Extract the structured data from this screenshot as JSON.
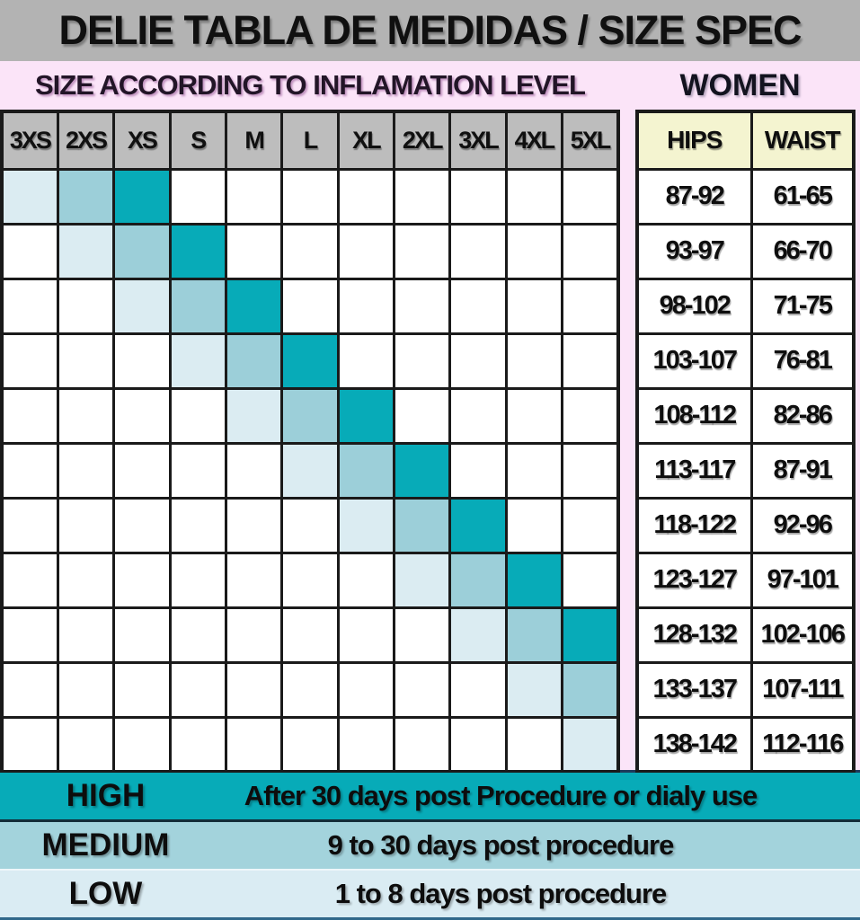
{
  "title": "DELIE TABLA DE MEDIDAS / SIZE SPEC",
  "section_headers": {
    "left": "SIZE ACCORDING TO INFLAMATION LEVEL",
    "right": "WOMEN"
  },
  "legend": {
    "rows": [
      {
        "label": "HIGH",
        "description": "After 30 days post Procedure or dialy use",
        "level": "high"
      },
      {
        "label": "MEDIUM",
        "description": "9 to 30 days post procedure",
        "level": "medium"
      },
      {
        "label": "LOW",
        "description": "1 to 8 days post procedure",
        "level": "low"
      }
    ]
  },
  "colors": {
    "high": "#07abb8",
    "medium": "#9ccfd9",
    "low": "#dbecf2",
    "legend_medium": "#a3d3dc",
    "legend_low": "#daecf3",
    "title_bar_bg": "#b3b3b3",
    "grid_header_bg": "#bdbdbd",
    "page_bg": "#fbe4f8",
    "women_header_bg": "#f4f4d0",
    "border": "#1a1a1a",
    "navy_line": "#1d3a5c"
  },
  "chart_data": [
    {
      "type": "heatmap",
      "title": "SIZE ACCORDING TO INFLAMATION LEVEL",
      "x_categories": [
        "3XS",
        "2XS",
        "XS",
        "S",
        "M",
        "L",
        "XL",
        "2XL",
        "3XL",
        "4XL",
        "5XL"
      ],
      "levels": [
        "LOW",
        "MEDIUM",
        "HIGH"
      ],
      "cells": [
        {
          "row": 1,
          "low": "3XS",
          "medium": "2XS",
          "high": "XS"
        },
        {
          "row": 2,
          "low": "2XS",
          "medium": "XS",
          "high": "S"
        },
        {
          "row": 3,
          "low": "XS",
          "medium": "S",
          "high": "M"
        },
        {
          "row": 4,
          "low": "S",
          "medium": "M",
          "high": "L"
        },
        {
          "row": 5,
          "low": "M",
          "medium": "L",
          "high": "XL"
        },
        {
          "row": 6,
          "low": "L",
          "medium": "XL",
          "high": "2XL"
        },
        {
          "row": 7,
          "low": "XL",
          "medium": "2XL",
          "high": "3XL"
        },
        {
          "row": 8,
          "low": "2XL",
          "medium": "3XL",
          "high": "4XL"
        },
        {
          "row": 9,
          "low": "3XL",
          "medium": "4XL",
          "high": "5XL"
        },
        {
          "row": 10,
          "low": "4XL",
          "medium": "5XL",
          "high": null
        },
        {
          "row": 11,
          "low": "5XL",
          "medium": null,
          "high": null
        }
      ],
      "legend": [
        {
          "label": "HIGH",
          "meaning": "After 30 days post Procedure or dialy use"
        },
        {
          "label": "MEDIUM",
          "meaning": "9 to 30 days post procedure"
        },
        {
          "label": "LOW",
          "meaning": "1 to 8 days post procedure"
        }
      ]
    },
    {
      "type": "table",
      "title": "WOMEN",
      "columns": [
        "HIPS",
        "WAIST"
      ],
      "rows": [
        [
          "87-92",
          "61-65"
        ],
        [
          "93-97",
          "66-70"
        ],
        [
          "98-102",
          "71-75"
        ],
        [
          "103-107",
          "76-81"
        ],
        [
          "108-112",
          "82-86"
        ],
        [
          "113-117",
          "87-91"
        ],
        [
          "118-122",
          "92-96"
        ],
        [
          "123-127",
          "97-101"
        ],
        [
          "128-132",
          "102-106"
        ],
        [
          "133-137",
          "107-111"
        ],
        [
          "138-142",
          "112-116"
        ]
      ]
    }
  ]
}
